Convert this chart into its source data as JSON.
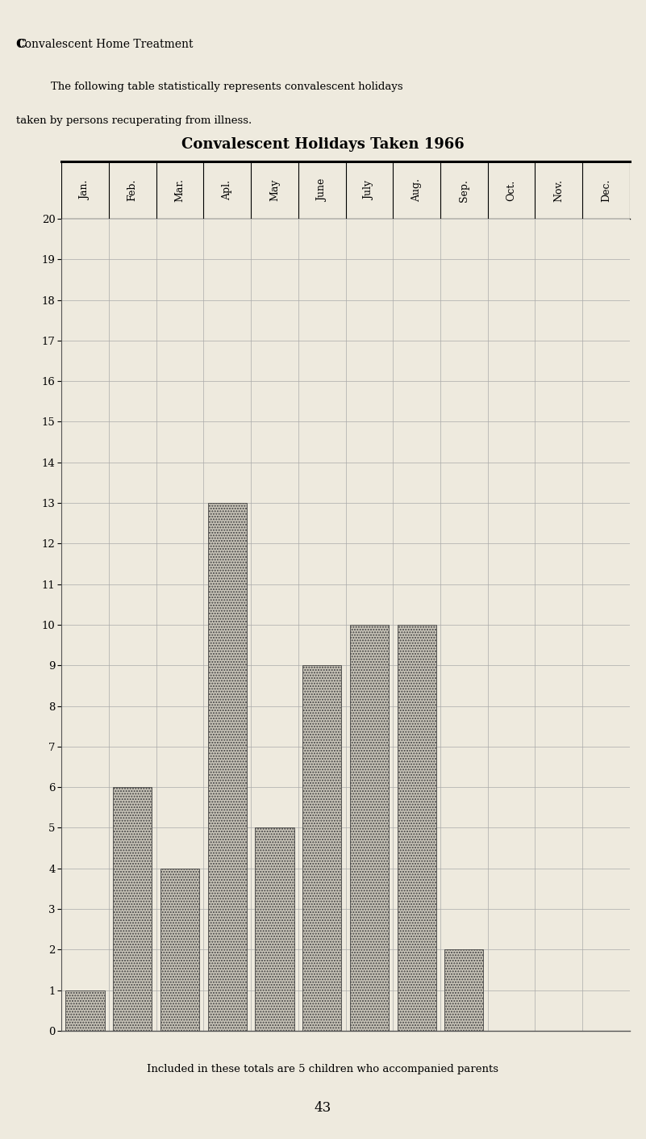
{
  "title": "Convalescent Holidays Taken 1966",
  "header_title": "CONVALESCENT HOME TREATMENT",
  "header_body_indent": "    The following table statistically represents convalescent holidays\ntaken by persons recuperating from illness.",
  "footer_note": "Included in these totals are 5 children who accompanied parents",
  "page_number": "43",
  "months": [
    "Jan.",
    "Feb.",
    "Mar.",
    "Apl.",
    "May",
    "June",
    "July",
    "Aug.",
    "Sep.",
    "Oct.",
    "Nov.",
    "Dec."
  ],
  "values": [
    1,
    6,
    4,
    13,
    5,
    9,
    10,
    10,
    2,
    0,
    0,
    0
  ],
  "ylim": [
    0,
    20
  ],
  "yticks": [
    0,
    1,
    2,
    3,
    4,
    5,
    6,
    7,
    8,
    9,
    10,
    11,
    12,
    13,
    14,
    15,
    16,
    17,
    18,
    19,
    20
  ],
  "bar_color": "#c8c4b8",
  "bar_edge_color": "#444444",
  "bg_color": "#eeeade",
  "grid_color": "#aaaaaa",
  "line_color": "#555555",
  "title_fontsize": 13,
  "tick_fontsize": 9.5,
  "header_fontsize": 10,
  "month_fontsize": 9
}
